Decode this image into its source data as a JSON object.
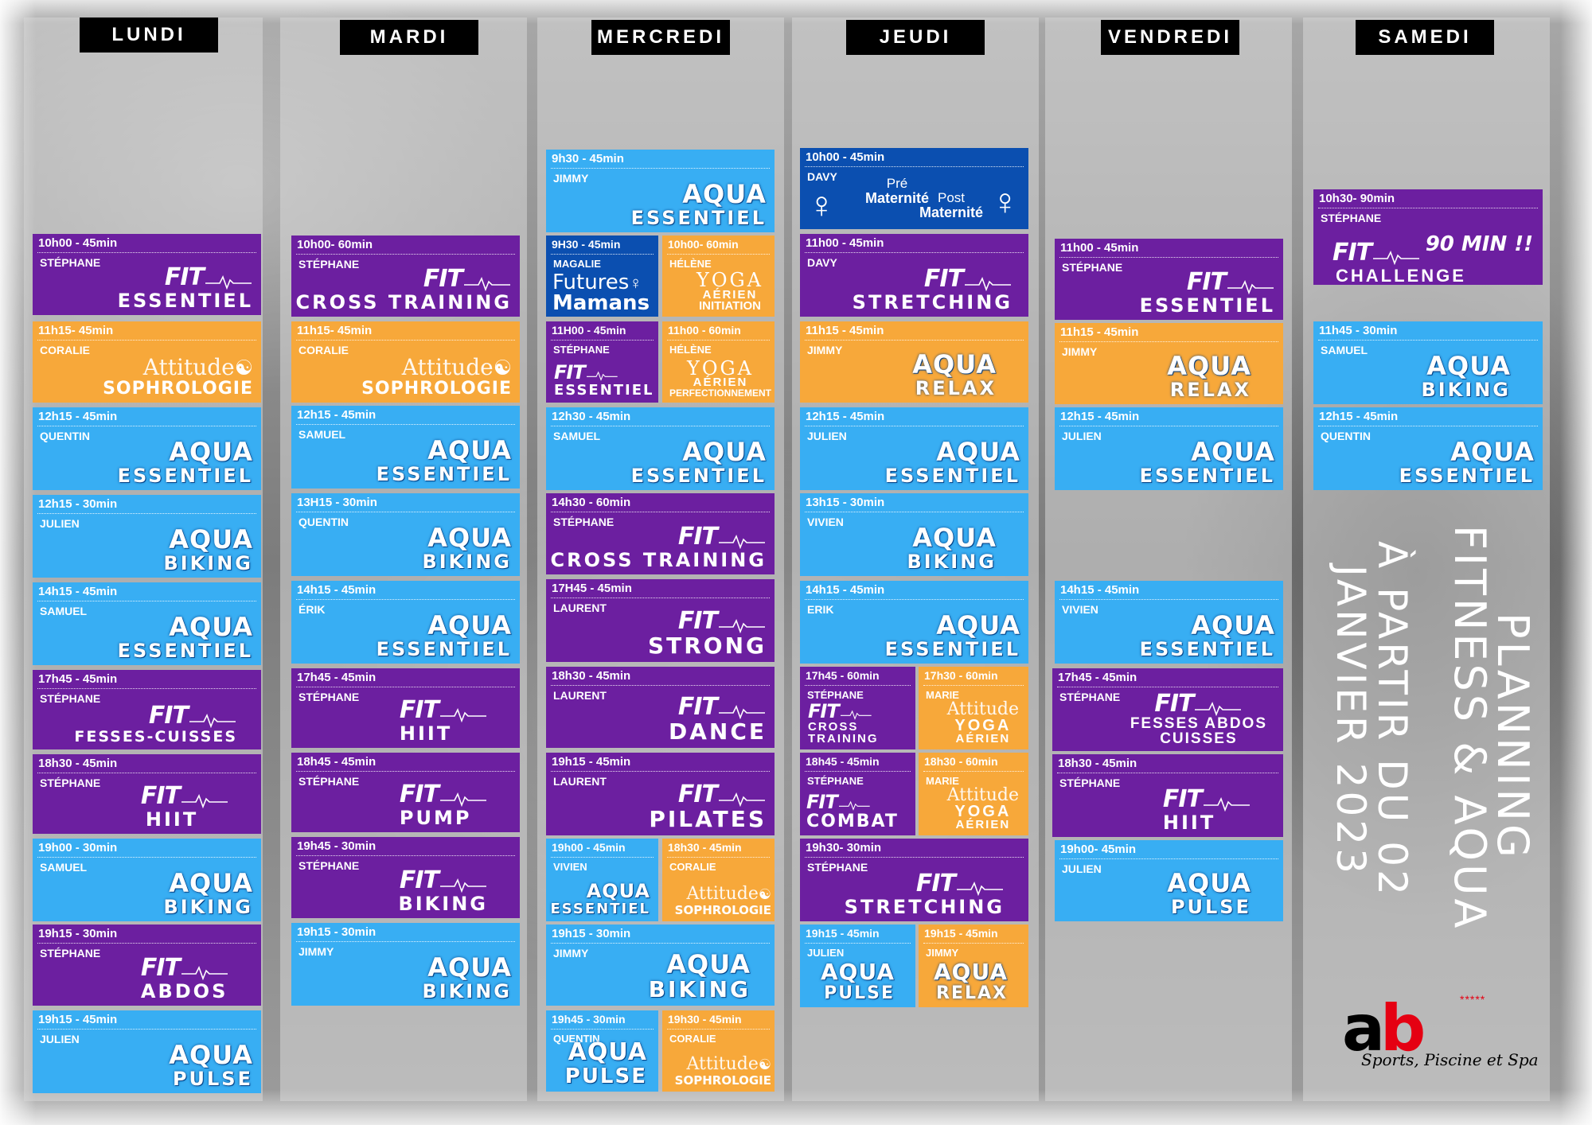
{
  "days": [
    "LUNDI",
    "MARDI",
    "MERCREDI",
    "JEUDI",
    "VENDREDI",
    "SAMEDI"
  ],
  "title": {
    "line1": "PLANNING",
    "line2": "FITNESS & AQUA",
    "line3": "À PARTIR DU 02",
    "line4": "JANVIER 2023"
  },
  "brand": {
    "name_a": "a",
    "name_b": "b",
    "stars": "*****",
    "tagline": "Sports, Piscine et Spa"
  },
  "colors": {
    "purple": "#6c1fa0",
    "blue": "#38aef3",
    "orange": "#f7a83a",
    "navy": "#0b4fb0"
  },
  "lundi": [
    {
      "time": "10h00 - 45min",
      "coach": "STÉPHANE",
      "brand": "FIT",
      "name": "ESSENTIEL"
    },
    {
      "time": "11h15- 45min",
      "coach": "CORALIE",
      "brand": "Attitude",
      "name": "SOPHROLOGIE"
    },
    {
      "time": "12h15 - 45min",
      "coach": "QUENTIN",
      "brand": "AQUA",
      "name": "ESSENTIEL"
    },
    {
      "time": "12h15 - 30min",
      "coach": "JULIEN",
      "brand": "AQUA",
      "name": "BIKING"
    },
    {
      "time": "14h15 - 45min",
      "coach": "SAMUEL",
      "brand": "AQUA",
      "name": "ESSENTIEL"
    },
    {
      "time": "17h45 - 45min",
      "coach": "STÉPHANE",
      "brand": "FIT",
      "name": "FESSES-CUISSES"
    },
    {
      "time": "18h30 - 45min",
      "coach": "STÉPHANE",
      "brand": "FIT",
      "name": "HIIT"
    },
    {
      "time": "19h00 - 30min",
      "coach": "SAMUEL",
      "brand": "AQUA",
      "name": "BIKING"
    },
    {
      "time": "19h15 - 30min",
      "coach": "STÉPHANE",
      "brand": "FIT",
      "name": "ABDOS"
    },
    {
      "time": "19h15 - 45min",
      "coach": "JULIEN",
      "brand": "AQUA",
      "name": "PULSE"
    }
  ],
  "mardi": [
    {
      "time": "10h00- 60min",
      "coach": "STÉPHANE",
      "brand": "FIT",
      "name": "CROSS TRAINING"
    },
    {
      "time": "11h15- 45min",
      "coach": "CORALIE",
      "brand": "Attitude",
      "name": "SOPHROLOGIE"
    },
    {
      "time": "12h15 - 45min",
      "coach": "SAMUEL",
      "brand": "AQUA",
      "name": "ESSENTIEL"
    },
    {
      "time": "13H15 - 30min",
      "coach": "QUENTIN",
      "brand": "AQUA",
      "name": "BIKING"
    },
    {
      "time": "14h15 - 45min",
      "coach": "ÉRIK",
      "brand": "AQUA",
      "name": "ESSENTIEL"
    },
    {
      "time": "17h45 - 45min",
      "coach": "STÉPHANE",
      "brand": "FIT",
      "name": "HIIT"
    },
    {
      "time": "18h45 - 45min",
      "coach": "STÉPHANE",
      "brand": "FIT",
      "name": "PUMP"
    },
    {
      "time": "19h45 - 30min",
      "coach": "STÉPHANE",
      "brand": "FIT",
      "name": "BIKING"
    },
    {
      "time": "19h15 - 30min",
      "coach": "JIMMY",
      "brand": "AQUA",
      "name": "BIKING"
    }
  ],
  "mercredi": [
    {
      "time": "9h30 - 45min",
      "coach": "JIMMY",
      "brand": "AQUA",
      "name": "ESSENTIEL"
    },
    {
      "time": "9H30 - 45min",
      "coach": "MAGALIE",
      "brand": "Futures",
      "name": "Mamans"
    },
    {
      "time": "10h00- 60min",
      "coach": "HÉLÈNE",
      "brand": "YOGA",
      "name": "AÉRIEN",
      "extra": "INITIATION"
    },
    {
      "time": "11H00 - 45min",
      "coach": "STÉPHANE",
      "brand": "FIT",
      "name": "ESSENTIEL"
    },
    {
      "time": "11h00 - 60min",
      "coach": "HÉLÈNE",
      "brand": "YOGA",
      "name": "AÉRIEN",
      "extra": "PERFECTIONNEMENT"
    },
    {
      "time": "12h30 - 45min",
      "coach": "SAMUEL",
      "brand": "AQUA",
      "name": "ESSENTIEL"
    },
    {
      "time": "14h30 - 60min",
      "coach": "STÉPHANE",
      "brand": "FIT",
      "name": "CROSS TRAINING"
    },
    {
      "time": "17H45 - 45min",
      "coach": "LAURENT",
      "brand": "FIT",
      "name": "STRONG"
    },
    {
      "time": "18h30 - 45min",
      "coach": "LAURENT",
      "brand": "FIT",
      "name": "DANCE"
    },
    {
      "time": "19h15 - 45min",
      "coach": "LAURENT",
      "brand": "FIT",
      "name": "PILATES"
    },
    {
      "time": "19h00 - 45min",
      "coach": "VIVIEN",
      "brand": "AQUA",
      "name": "ESSENTIEL"
    },
    {
      "time": "18h30 - 45min",
      "coach": "CORALIE",
      "brand": "Attitude",
      "name": "SOPHROLOGIE"
    },
    {
      "time": "19h15 - 30min",
      "coach": "JIMMY",
      "brand": "AQUA",
      "name": "BIKING"
    },
    {
      "time": "19h45 - 30min",
      "coach": "QUENTIN",
      "brand": "AQUA",
      "name": "PULSE"
    },
    {
      "time": "19h30 - 45min",
      "coach": "CORALIE",
      "brand": "Attitude",
      "name": "SOPHROLOGIE"
    }
  ],
  "jeudi": [
    {
      "time": "10h00 - 45min",
      "coach": "DAVY",
      "pre": "Pré",
      "pre2": "Maternité",
      "post": "Post",
      "post2": "Maternité"
    },
    {
      "time": "11h00 - 45min",
      "coach": "DAVY",
      "brand": "FIT",
      "name": "STRETCHING"
    },
    {
      "time": "11h15 - 45min",
      "coach": "JIMMY",
      "brand": "AQUA",
      "name": "RELAX"
    },
    {
      "time": "12h15 - 45min",
      "coach": "JULIEN",
      "brand": "AQUA",
      "name": "ESSENTIEL"
    },
    {
      "time": "13h15 - 30min",
      "coach": "VIVIEN",
      "brand": "AQUA",
      "name": "BIKING"
    },
    {
      "time": "14h15 - 45min",
      "coach": "ERIK",
      "brand": "AQUA",
      "name": "ESSENTIEL"
    },
    {
      "time": "17h45 - 60min",
      "coach": "STÉPHANE",
      "brand": "FIT",
      "name": "CROSS",
      "extra": "TRAINING"
    },
    {
      "time": "17h30 - 60min",
      "coach": "MARIE",
      "brand": "Attitude",
      "name": "YOGA",
      "extra": "AÉRIEN"
    },
    {
      "time": "18h45 - 45min",
      "coach": "STÉPHANE",
      "brand": "FIT",
      "name": "COMBAT"
    },
    {
      "time": "18h30 - 60min",
      "coach": "MARIE",
      "brand": "Attitude",
      "name": "YOGA",
      "extra": "AÉRIEN"
    },
    {
      "time": "19h30- 30min",
      "coach": "STÉPHANE",
      "brand": "FIT",
      "name": "STRETCHING"
    },
    {
      "time": "19h15 - 45min",
      "coach": "JULIEN",
      "brand": "AQUA",
      "name": "PULSE"
    },
    {
      "time": "19h15 - 45min",
      "coach": "JIMMY",
      "brand": "AQUA",
      "name": "RELAX"
    }
  ],
  "vendredi": [
    {
      "time": "11h00 - 45min",
      "coach": "STÉPHANE",
      "brand": "FIT",
      "name": "ESSENTIEL"
    },
    {
      "time": "11h15 - 45min",
      "coach": "JIMMY",
      "brand": "AQUA",
      "name": "RELAX"
    },
    {
      "time": "12h15 - 45min",
      "coach": "JULIEN",
      "brand": "AQUA",
      "name": "ESSENTIEL"
    },
    {
      "time": "14h15 - 45min",
      "coach": "VIVIEN",
      "brand": "AQUA",
      "name": "ESSENTIEL"
    },
    {
      "time": "17h45 - 45min",
      "coach": "STÉPHANE",
      "brand": "FIT",
      "name": "FESSES ABDOS",
      "extra": "CUISSES"
    },
    {
      "time": "18h30 - 45min",
      "coach": "STÉPHANE",
      "brand": "FIT",
      "name": "HIIT"
    },
    {
      "time": "19h00- 45min",
      "coach": "JULIEN",
      "brand": "AQUA",
      "name": "PULSE"
    }
  ],
  "samedi": [
    {
      "time": "10h30- 90min",
      "coach": "STÉPHANE",
      "brand": "FIT",
      "badge": "90 MIN !!",
      "name": "CHALLENGE"
    },
    {
      "time": "11h45 - 30min",
      "coach": "SAMUEL",
      "brand": "AQUA",
      "name": "BIKING"
    },
    {
      "time": "12h15 - 45min",
      "coach": "QUENTIN",
      "brand": "AQUA",
      "name": "ESSENTIEL"
    }
  ]
}
